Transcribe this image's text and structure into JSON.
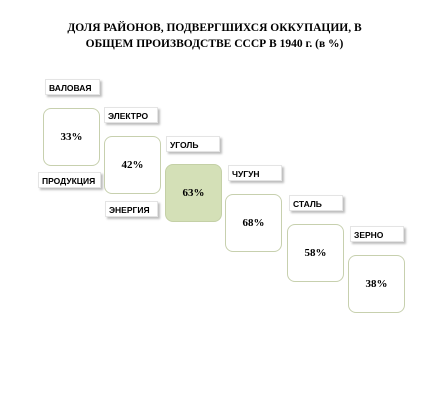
{
  "title": {
    "line1": "ДОЛЯ РАЙОНОВ, ПОДВЕРГШИХСЯ ОККУПАЦИИ, В",
    "line2": "ОБЩЕМ ПРОИЗВОДСТВЕ  СССР В 1940 г. (в %)"
  },
  "items": [
    {
      "label_top": "ВАЛОВАЯ",
      "label_bottom": "ПРОДУКЦИЯ",
      "value": "33%"
    },
    {
      "label_top": "ЭЛЕКТРО",
      "label_bottom": "ЭНЕРГИЯ",
      "value": "42%"
    },
    {
      "label_top": "УГОЛЬ",
      "value": "63%"
    },
    {
      "label_top": "ЧУГУН",
      "value": "68%"
    },
    {
      "label_top": "СТАЛЬ",
      "value": "58%"
    },
    {
      "label_top": "ЗЕРНО",
      "value": "38%"
    }
  ]
}
